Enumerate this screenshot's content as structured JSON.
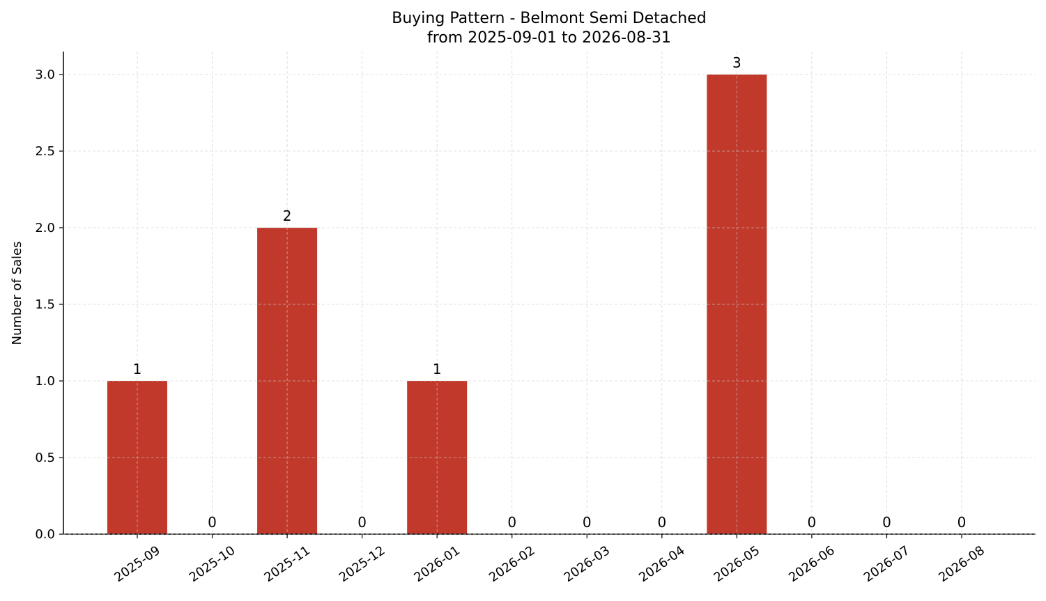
{
  "chart_data": {
    "type": "bar",
    "title": "Buying Pattern - Belmont Semi Detached",
    "subtitle": "from 2025-09-01 to 2026-08-31",
    "xlabel": "",
    "ylabel": "Number of Sales",
    "categories": [
      "2025-09",
      "2025-10",
      "2025-11",
      "2025-12",
      "2026-01",
      "2026-02",
      "2026-03",
      "2026-04",
      "2026-05",
      "2026-06",
      "2026-07",
      "2026-08"
    ],
    "values": [
      1,
      0,
      2,
      0,
      1,
      0,
      0,
      0,
      3,
      0,
      0,
      0
    ],
    "data_labels": [
      "1",
      "0",
      "2",
      "0",
      "1",
      "0",
      "0",
      "0",
      "3",
      "0",
      "0",
      "0"
    ],
    "ylim": [
      0,
      3.15
    ],
    "yticks": [
      0.0,
      0.5,
      1.0,
      1.5,
      2.0,
      2.5,
      3.0
    ],
    "ytick_labels": [
      "0.0",
      "0.5",
      "1.0",
      "1.5",
      "2.0",
      "2.5",
      "3.0"
    ],
    "grid": true,
    "legend": "none",
    "bar_color": "#c0392b"
  }
}
